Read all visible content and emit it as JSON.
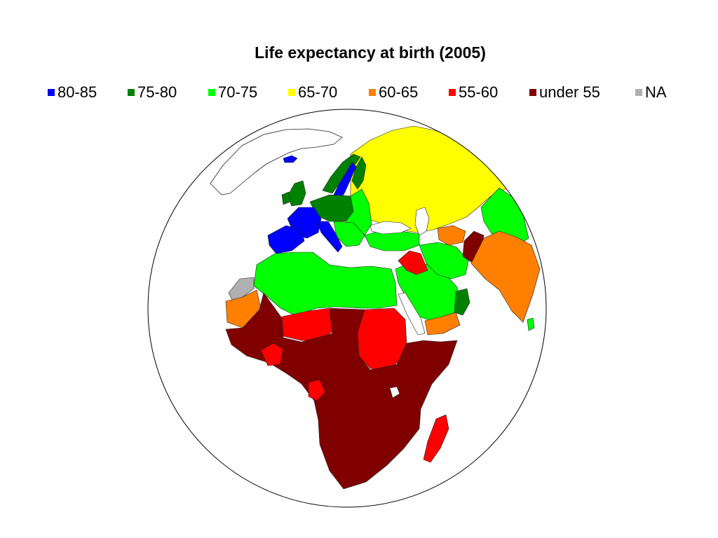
{
  "title": "Life expectancy at birth (2005)",
  "legend": [
    {
      "label": "80-85",
      "color": "#0000ff"
    },
    {
      "label": "75-80",
      "color": "#008000"
    },
    {
      "label": "70-75",
      "color": "#00ff00"
    },
    {
      "label": "65-70",
      "color": "#ffff00"
    },
    {
      "label": "60-65",
      "color": "#ff8000"
    },
    {
      "label": "55-60",
      "color": "#ff0000"
    },
    {
      "label": "under 55",
      "color": "#800000"
    },
    {
      "label": "NA",
      "color": "#b0b0b0"
    }
  ],
  "map": {
    "projection": "orthographic",
    "view": "Europe, Africa, Middle East and South Asia"
  }
}
